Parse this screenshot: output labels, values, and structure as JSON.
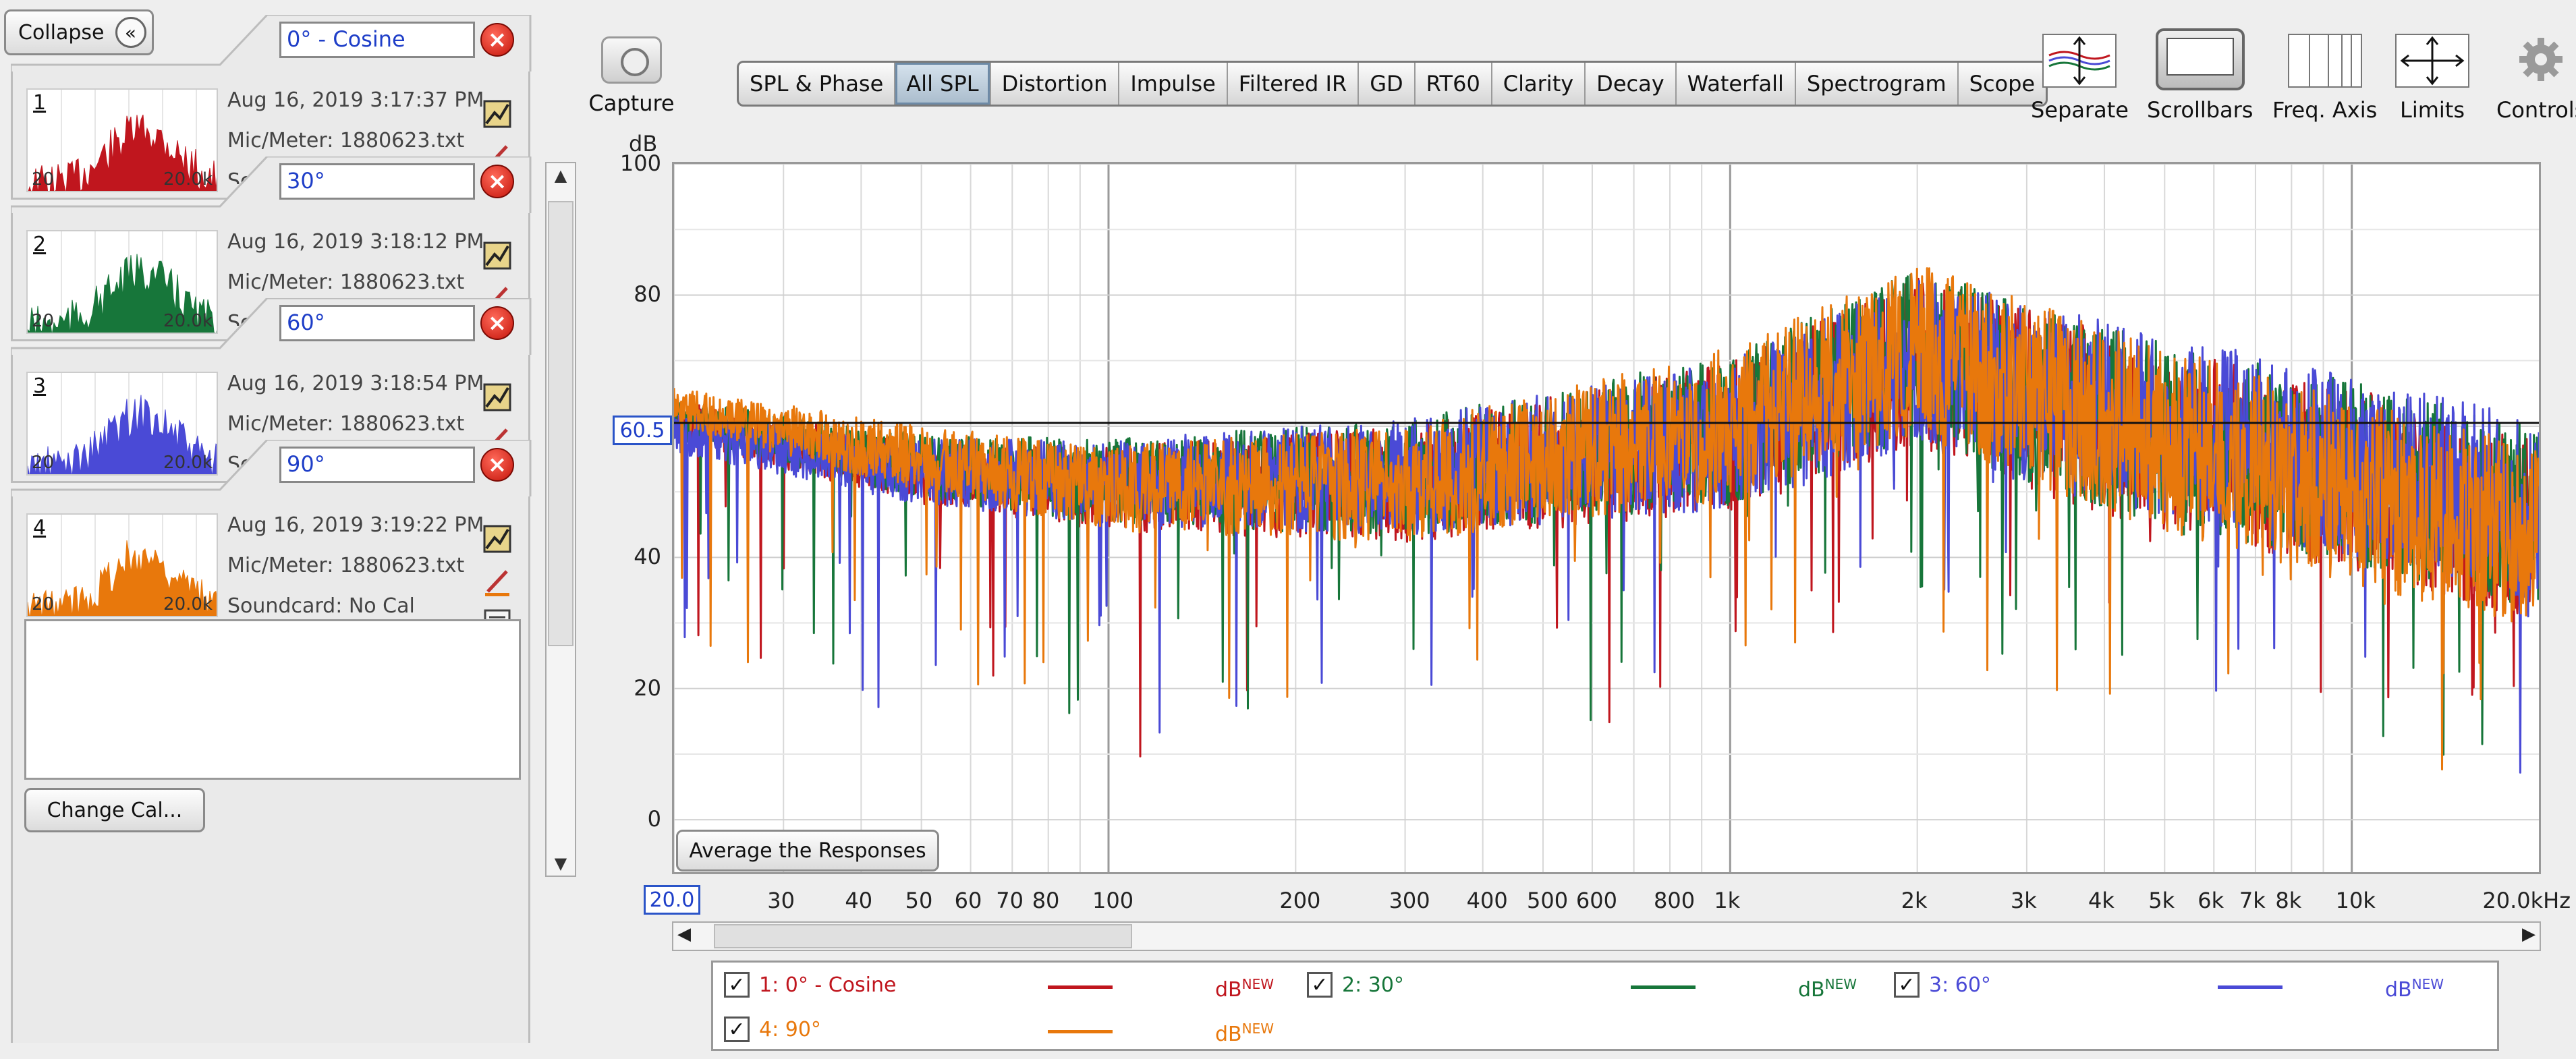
{
  "left_panel": {
    "collapse_label": "Collapse",
    "change_cal_label": "Change Cal...",
    "measurements": [
      {
        "num": "1",
        "name": "0° - Cosine",
        "date": "Aug 16, 2019 3:17:37 PM",
        "mic": "Mic/Meter: 1880623.txt",
        "soundcard": "Soundcard: No Cal",
        "color": "#c0161e",
        "thumb_lo": "20",
        "thumb_hi": "20.0k"
      },
      {
        "num": "2",
        "name": "30°",
        "date": "Aug 16, 2019 3:18:12 PM",
        "mic": "Mic/Meter: 1880623.txt",
        "soundcard": "Soundcard: No Cal",
        "color": "#17763a",
        "thumb_lo": "20",
        "thumb_hi": "20.0k"
      },
      {
        "num": "3",
        "name": "60°",
        "date": "Aug 16, 2019 3:18:54 PM",
        "mic": "Mic/Meter: 1880623.txt",
        "soundcard": "Soundcard: No Cal",
        "color": "#4a4ad6",
        "thumb_lo": "20",
        "thumb_hi": "20.0k"
      },
      {
        "num": "4",
        "name": "90°",
        "date": "Aug 16, 2019 3:19:22 PM",
        "mic": "Mic/Meter: 1880623.txt",
        "soundcard": "Soundcard: No Cal",
        "color": "#e8780c",
        "thumb_lo": "20",
        "thumb_hi": "20.0k"
      }
    ]
  },
  "toolbar": {
    "capture_label": "Capture",
    "tabs": [
      "SPL & Phase",
      "All SPL",
      "Distortion",
      "Impulse",
      "Filtered IR",
      "GD",
      "RT60",
      "Clarity",
      "Decay",
      "Waterfall",
      "Spectrogram",
      "Scope"
    ],
    "active_tab": "All SPL",
    "tools": [
      "Separate",
      "Scrollbars",
      "Freq. Axis",
      "Limits",
      "Controls"
    ]
  },
  "plot": {
    "y_unit": "dB",
    "ref_level": "60.5",
    "x_start": "20.0",
    "avg_button": "Average the Responses"
  },
  "chart_data": {
    "type": "line",
    "xlabel": "kHz",
    "ylabel": "dB",
    "x_scale": "log",
    "xlim": [
      20,
      20000
    ],
    "ylim": [
      -8,
      100
    ],
    "grid": true,
    "y_ticks": [
      0,
      20,
      40,
      60,
      80,
      100
    ],
    "y_tick_labels": [
      "0",
      "20",
      "40",
      "60",
      "80",
      "100"
    ],
    "x_ticks": [
      30,
      40,
      50,
      60,
      70,
      80,
      100,
      200,
      300,
      400,
      500,
      600,
      800,
      1000,
      2000,
      3000,
      4000,
      5000,
      6000,
      7000,
      8000,
      10000,
      20000
    ],
    "x_tick_labels": [
      "30",
      "40",
      "50",
      "60",
      "70",
      "80",
      "100",
      "200",
      "300",
      "400",
      "500",
      "600",
      "800",
      "1k",
      "2k",
      "3k",
      "4k",
      "5k",
      "6k",
      "7k",
      "8k",
      "10k",
      "20.0kHz"
    ],
    "reference_line": 60.5,
    "series": [
      {
        "name": "1: 0° - Cosine",
        "color": "#c0161e",
        "envelope_freq": [
          20,
          50,
          100,
          300,
          1000,
          2000,
          5000,
          10000,
          20000
        ],
        "envelope_db": [
          64,
          58,
          57,
          60,
          70,
          83,
          72,
          66,
          58
        ]
      },
      {
        "name": "2: 30°",
        "color": "#17763a",
        "envelope_freq": [
          20,
          50,
          100,
          300,
          1000,
          2000,
          5000,
          10000,
          20000
        ],
        "envelope_db": [
          64,
          59,
          58,
          61,
          71,
          84,
          73,
          67,
          60
        ]
      },
      {
        "name": "3: 60°",
        "color": "#4a4ad6",
        "envelope_freq": [
          20,
          50,
          100,
          300,
          1000,
          2000,
          5000,
          10000,
          20000
        ],
        "envelope_db": [
          62,
          58,
          58,
          61,
          70,
          83,
          74,
          68,
          61
        ]
      },
      {
        "name": "4: 90°",
        "color": "#e8780c",
        "envelope_freq": [
          20,
          50,
          100,
          300,
          1000,
          2000,
          5000,
          10000,
          20000
        ],
        "envelope_db": [
          66,
          60,
          57,
          60,
          72,
          85,
          72,
          64,
          57
        ]
      }
    ]
  },
  "legend": {
    "items": [
      {
        "label": "1: 0° - Cosine",
        "color": "#c0161e",
        "db": "dB",
        "tag": "NEW"
      },
      {
        "label": "2: 30°",
        "color": "#17763a",
        "db": "dB",
        "tag": "NEW"
      },
      {
        "label": "3: 60°",
        "color": "#4a4ad6",
        "db": "dB",
        "tag": "NEW"
      },
      {
        "label": "4: 90°",
        "color": "#e8780c",
        "db": "dB",
        "tag": "NEW"
      }
    ]
  }
}
